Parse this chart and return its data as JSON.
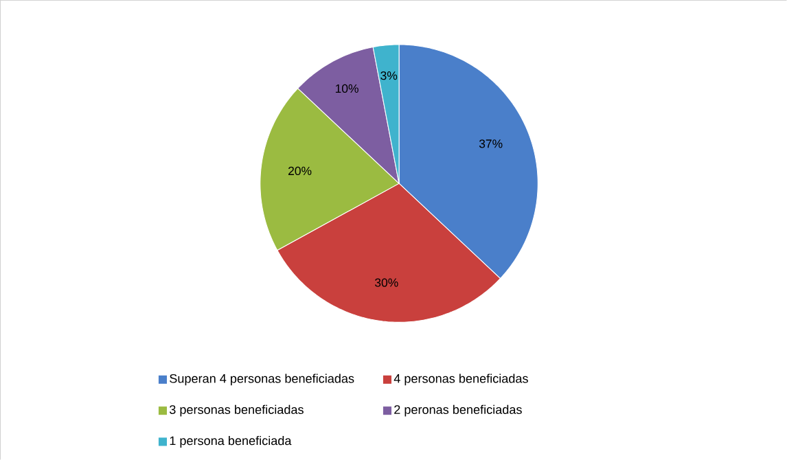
{
  "chart_data": {
    "type": "pie",
    "categories": [
      "Superan 4 personas beneficiadas",
      "4 personas beneficiadas",
      "3 personas beneficiadas",
      "2 peronas beneficiadas",
      "1 persona beneficiada"
    ],
    "values": [
      37,
      30,
      20,
      10,
      3
    ],
    "value_labels": [
      "37%",
      "30%",
      "20%",
      "10%",
      "3%"
    ],
    "colors": [
      "#4a7fca",
      "#c9403d",
      "#9bbb41",
      "#7d5ea1",
      "#3fb3cd"
    ],
    "legend": "bottom"
  }
}
